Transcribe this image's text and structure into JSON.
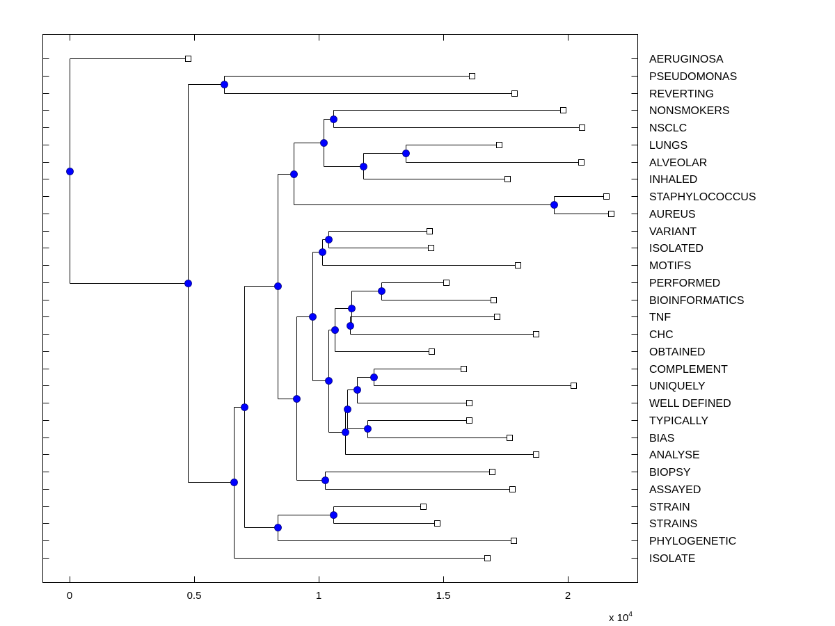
{
  "chart_data": {
    "type": "dendrogram",
    "orientation": "horizontal",
    "title": "",
    "xlabel": "",
    "ylabel": "",
    "x_multiplier_label": "x 10",
    "x_multiplier_exponent": "4",
    "xlim": [
      -0.1,
      2.27
    ],
    "x_ticks": [
      0,
      0.5,
      1,
      1.5,
      2
    ],
    "x_tick_labels": [
      "0",
      "0.5",
      "1",
      "1.5",
      "2"
    ],
    "grid": false,
    "leaf_marker": "open-square",
    "node_marker": "filled-circle",
    "node_color": "#0000ff",
    "line_color": "#000000",
    "leaves": [
      {
        "label": "AERUGINOSA",
        "x": 0.475
      },
      {
        "label": "PSEUDOMONAS",
        "x": 1.615
      },
      {
        "label": "REVERTING",
        "x": 1.785
      },
      {
        "label": "NONSMOKERS",
        "x": 1.98
      },
      {
        "label": "NSCLC",
        "x": 2.056
      },
      {
        "label": "LUNGS",
        "x": 1.723
      },
      {
        "label": "ALVEOLAR",
        "x": 2.053
      },
      {
        "label": "INHALED",
        "x": 1.757
      },
      {
        "label": "STAPHYLOCOCCUS",
        "x": 2.154
      },
      {
        "label": "AUREUS",
        "x": 2.173
      },
      {
        "label": "VARIANT",
        "x": 1.444
      },
      {
        "label": "ISOLATED",
        "x": 1.45
      },
      {
        "label": "MOTIFS",
        "x": 1.799
      },
      {
        "label": "PERFORMED",
        "x": 1.511
      },
      {
        "label": "BIOINFORMATICS",
        "x": 1.701
      },
      {
        "label": "TNF",
        "x": 1.715
      },
      {
        "label": "CHC",
        "x": 1.872
      },
      {
        "label": "OBTAINED",
        "x": 1.453
      },
      {
        "label": "COMPLEMENT",
        "x": 1.581
      },
      {
        "label": "UNIQUELY",
        "x": 2.022
      },
      {
        "label": "WELL DEFINED",
        "x": 1.603
      },
      {
        "label": "TYPICALLY",
        "x": 1.603
      },
      {
        "label": "BIAS",
        "x": 1.765
      },
      {
        "label": "ANALYSE",
        "x": 1.872
      },
      {
        "label": "BIOPSY",
        "x": 1.696
      },
      {
        "label": "ASSAYED",
        "x": 1.777
      },
      {
        "label": "STRAIN",
        "x": 1.419
      },
      {
        "label": "STRAINS",
        "x": 1.475
      },
      {
        "label": "PHYLOGENETIC",
        "x": 1.782
      },
      {
        "label": "ISOLATE",
        "x": 1.676
      }
    ],
    "nodes": [
      {
        "id": "n_pseudo_rev",
        "x": 0.62,
        "children": [
          1,
          2
        ]
      },
      {
        "id": "n_nons_nsclc",
        "x": 1.06,
        "children": [
          3,
          4
        ]
      },
      {
        "id": "n_lungs_alv",
        "x": 1.35,
        "children": [
          5,
          6
        ]
      },
      {
        "id": "n_lungs_inh",
        "x": 1.18,
        "children": [
          "n_lungs_alv",
          7
        ]
      },
      {
        "id": "n_lung_group",
        "x": 1.02,
        "children": [
          "n_nons_nsclc",
          "n_lungs_inh"
        ]
      },
      {
        "id": "n_staph",
        "x": 1.945,
        "children": [
          8,
          9
        ]
      },
      {
        "id": "n_upper_resp",
        "x": 0.9,
        "children": [
          "n_lung_group",
          "n_staph"
        ]
      },
      {
        "id": "n_var_iso",
        "x": 1.04,
        "children": [
          10,
          11
        ]
      },
      {
        "id": "n_var_motifs",
        "x": 1.015,
        "children": [
          "n_var_iso",
          12
        ]
      },
      {
        "id": "n_perf_bio",
        "x": 1.25,
        "children": [
          13,
          14
        ]
      },
      {
        "id": "n_tnf_chc",
        "x": 1.125,
        "children": [
          15,
          16
        ]
      },
      {
        "id": "n_perf_tnf",
        "x": 1.13,
        "children": [
          "n_perf_bio",
          "n_tnf_chc"
        ]
      },
      {
        "id": "n_perf_obt",
        "x": 1.065,
        "children": [
          "n_perf_tnf",
          17
        ]
      },
      {
        "id": "n_comp_uniq",
        "x": 1.22,
        "children": [
          18,
          19
        ]
      },
      {
        "id": "n_comp_well",
        "x": 1.155,
        "children": [
          "n_comp_uniq",
          20
        ]
      },
      {
        "id": "n_typ_bias",
        "x": 1.195,
        "children": [
          21,
          22
        ]
      },
      {
        "id": "n_comp_typ",
        "x": 1.115,
        "children": [
          "n_comp_well",
          "n_typ_bias"
        ]
      },
      {
        "id": "n_comp_anal",
        "x": 1.105,
        "children": [
          "n_comp_typ",
          23
        ]
      },
      {
        "id": "n_perf_comp",
        "x": 1.04,
        "children": [
          "n_perf_obt",
          "n_comp_anal"
        ]
      },
      {
        "id": "n_mid_group",
        "x": 0.975,
        "children": [
          "n_var_motifs",
          "n_perf_comp"
        ]
      },
      {
        "id": "n_biopsy_ass",
        "x": 1.025,
        "children": [
          24,
          25
        ]
      },
      {
        "id": "n_mid_biopsy",
        "x": 0.91,
        "children": [
          "n_mid_group",
          "n_biopsy_ass"
        ]
      },
      {
        "id": "n_resp_mid",
        "x": 0.835,
        "children": [
          "n_upper_resp",
          "n_mid_biopsy"
        ]
      },
      {
        "id": "n_strain_strains",
        "x": 1.06,
        "children": [
          26,
          27
        ]
      },
      {
        "id": "n_strain_phylo",
        "x": 0.835,
        "children": [
          "n_strain_strains",
          28
        ]
      },
      {
        "id": "n_big_strain",
        "x": 0.7,
        "children": [
          "n_resp_mid",
          "n_strain_phylo"
        ]
      },
      {
        "id": "n_big_isolate",
        "x": 0.66,
        "children": [
          "n_big_strain",
          29
        ]
      },
      {
        "id": "n_lower_all",
        "x": 0.475,
        "children": [
          "n_pseudo_rev",
          "n_big_isolate"
        ]
      },
      {
        "id": "n_root",
        "x": 0.0,
        "children": [
          0,
          "n_lower_all"
        ]
      }
    ]
  }
}
